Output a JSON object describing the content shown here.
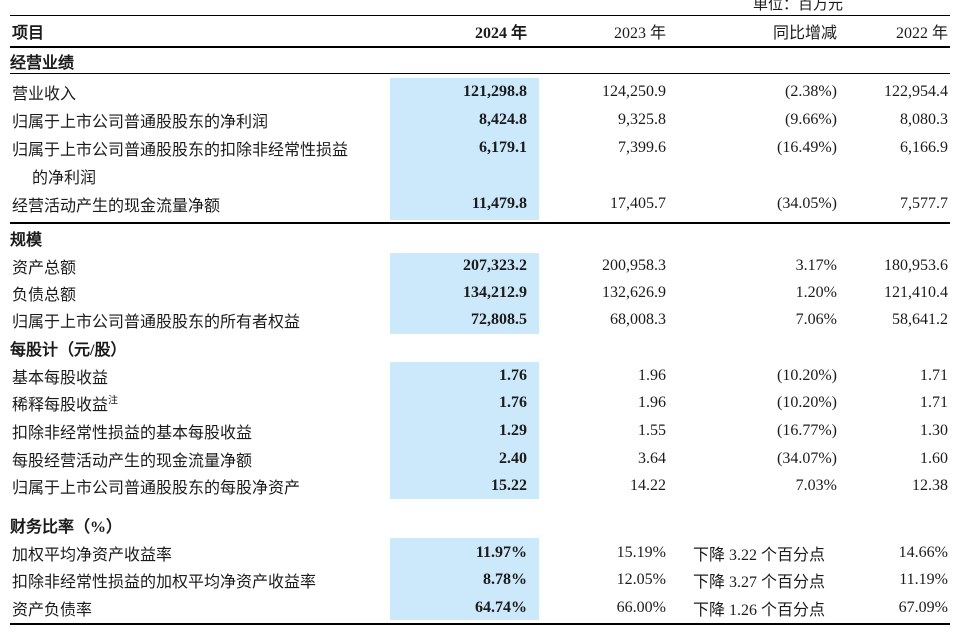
{
  "unit_note": "单位：百万元",
  "highlight_color": "#cce9fb",
  "columns": {
    "item": "项目",
    "y2024": "2024 年",
    "y2023": "2023 年",
    "yoy": "同比增减",
    "y2022": "2022 年"
  },
  "sections": [
    {
      "title": "经营业绩",
      "rows": [
        {
          "label": "营业收入",
          "v2024": "121,298.8",
          "v2023": "124,250.9",
          "yoy": "(2.38%)",
          "v2022": "122,954.4"
        },
        {
          "label": "归属于上市公司普通股股东的净利润",
          "v2024": "8,424.8",
          "v2023": "9,325.8",
          "yoy": "(9.66%)",
          "v2022": "8,080.3"
        },
        {
          "label": "归属于上市公司普通股股东的扣除非经常性损益",
          "label_line2": "的净利润",
          "v2024": "6,179.1",
          "v2023": "7,399.6",
          "yoy": "(16.49%)",
          "v2022": "6,166.9"
        },
        {
          "label": "经营活动产生的现金流量净额",
          "v2024": "11,479.8",
          "v2023": "17,405.7",
          "yoy": "(34.05%)",
          "v2022": "7,577.7"
        }
      ]
    },
    {
      "title": "规模",
      "rows": [
        {
          "label": "资产总额",
          "v2024": "207,323.2",
          "v2023": "200,958.3",
          "yoy": "3.17%",
          "v2022": "180,953.6"
        },
        {
          "label": "负债总额",
          "v2024": "134,212.9",
          "v2023": "132,626.9",
          "yoy": "1.20%",
          "v2022": "121,410.4"
        },
        {
          "label": "归属于上市公司普通股股东的所有者权益",
          "v2024": "72,808.5",
          "v2023": "68,008.3",
          "yoy": "7.06%",
          "v2022": "58,641.2"
        }
      ]
    },
    {
      "title": "每股计（元/股）",
      "rows": [
        {
          "label": "基本每股收益",
          "v2024": "1.76",
          "v2023": "1.96",
          "yoy": "(10.20%)",
          "v2022": "1.71"
        },
        {
          "label": "稀释每股收益",
          "label_sup": "注",
          "v2024": "1.76",
          "v2023": "1.96",
          "yoy": "(10.20%)",
          "v2022": "1.71"
        },
        {
          "label": "扣除非经常性损益的基本每股收益",
          "v2024": "1.29",
          "v2023": "1.55",
          "yoy": "(16.77%)",
          "v2022": "1.30"
        },
        {
          "label": "每股经营活动产生的现金流量净额",
          "v2024": "2.40",
          "v2023": "3.64",
          "yoy": "(34.07%)",
          "v2022": "1.60"
        },
        {
          "label": "归属于上市公司普通股股东的每股净资产",
          "v2024": "15.22",
          "v2023": "14.22",
          "yoy": "7.03%",
          "v2022": "12.38"
        }
      ]
    },
    {
      "title": "财务比率（%）",
      "rows": [
        {
          "label": "加权平均净资产收益率",
          "v2024": "11.97%",
          "v2023": "15.19%",
          "yoy": "下降 3.22 个百分点",
          "v2022": "14.66%"
        },
        {
          "label": "扣除非经常性损益的加权平均净资产收益率",
          "v2024": "8.78%",
          "v2023": "12.05%",
          "yoy": "下降 3.27 个百分点",
          "v2022": "11.19%"
        },
        {
          "label": "资产负债率",
          "v2024": "64.74%",
          "v2023": "66.00%",
          "yoy": "下降 1.26 个百分点",
          "v2022": "67.09%"
        }
      ]
    }
  ]
}
